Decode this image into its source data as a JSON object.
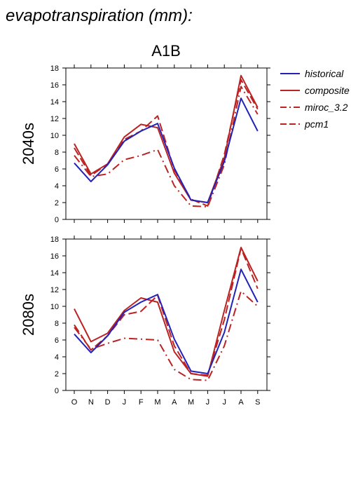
{
  "heading": "evapotranspiration (mm):",
  "chart_data": {
    "type": "line",
    "title": "A1B",
    "categories": [
      "O",
      "N",
      "D",
      "J",
      "F",
      "M",
      "A",
      "M",
      "J",
      "J",
      "A",
      "S"
    ],
    "ylim": [
      0,
      18
    ],
    "yticks": [
      0,
      2,
      4,
      6,
      8,
      10,
      12,
      14,
      16,
      18
    ],
    "legend_position": "top-right",
    "legend": [
      {
        "name": "historical",
        "color": "#2222bb",
        "dash": "solid"
      },
      {
        "name": "composite",
        "color": "#bb2222",
        "dash": "solid"
      },
      {
        "name": "miroc_3.2",
        "color": "#bb2222",
        "dash": "dashdot"
      },
      {
        "name": "pcm1",
        "color": "#bb2222",
        "dash": "dashed"
      }
    ],
    "panels": [
      {
        "label": "2040s",
        "series": [
          {
            "name": "historical",
            "values": [
              6.7,
              4.5,
              6.5,
              9.3,
              10.5,
              11.4,
              6.1,
              2.3,
              2.0,
              6.9,
              14.4,
              10.5
            ]
          },
          {
            "name": "composite",
            "values": [
              9.0,
              5.4,
              6.6,
              9.8,
              11.3,
              10.9,
              5.5,
              2.3,
              2.0,
              7.3,
              17.1,
              13.3
            ]
          },
          {
            "name": "miroc_3.2",
            "values": [
              7.6,
              5.1,
              5.4,
              7.1,
              7.6,
              8.3,
              4.0,
              1.6,
              1.5,
              6.5,
              15.8,
              12.5
            ]
          },
          {
            "name": "pcm1",
            "values": [
              8.5,
              5.2,
              6.6,
              9.5,
              10.5,
              12.3,
              5.9,
              2.4,
              1.6,
              7.7,
              16.6,
              13.1
            ]
          }
        ]
      },
      {
        "label": "2080s",
        "series": [
          {
            "name": "historical",
            "values": [
              6.7,
              4.5,
              6.5,
              9.3,
              10.5,
              11.4,
              6.1,
              2.3,
              2.0,
              6.9,
              14.4,
              10.5
            ]
          },
          {
            "name": "composite",
            "values": [
              9.7,
              5.8,
              6.8,
              9.5,
              11.0,
              10.5,
              4.6,
              2.0,
              1.7,
              9.5,
              17.0,
              13.0
            ]
          },
          {
            "name": "miroc_3.2",
            "values": [
              7.5,
              4.9,
              5.6,
              6.2,
              6.1,
              6.0,
              2.5,
              1.3,
              1.2,
              5.3,
              11.8,
              10.0
            ]
          },
          {
            "name": "pcm1",
            "values": [
              7.8,
              4.8,
              6.5,
              9.0,
              9.4,
              11.3,
              5.3,
              2.0,
              1.8,
              8.4,
              16.9,
              12.1
            ]
          }
        ]
      }
    ]
  }
}
